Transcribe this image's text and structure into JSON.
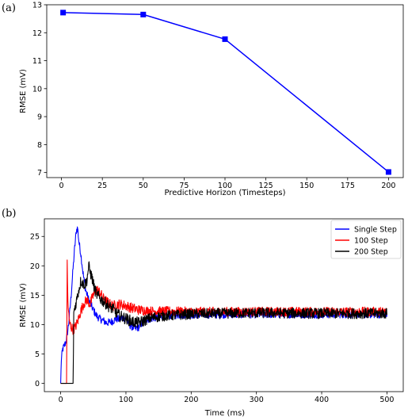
{
  "chart_data": [
    {
      "type": "line",
      "panel_label": "(a)",
      "xlabel": "Predictive Horizon (Timesteps)",
      "ylabel": "RMSE (mV)",
      "xlim": [
        -9,
        209
      ],
      "ylim": [
        6.82,
        13.0
      ],
      "xticks": [
        0,
        25,
        50,
        75,
        100,
        125,
        150,
        175,
        200
      ],
      "yticks": [
        7,
        8,
        9,
        10,
        11,
        12,
        13
      ],
      "grid": false,
      "series": [
        {
          "color": "#0000ff",
          "marker": "square",
          "x": [
            1,
            50,
            100,
            200
          ],
          "y": [
            12.72,
            12.65,
            11.77,
            7.02
          ]
        }
      ]
    },
    {
      "type": "line",
      "panel_label": "(b)",
      "xlabel": "Time (ms)",
      "ylabel": "RMSE (mV)",
      "xlim": [
        -25,
        525
      ],
      "ylim": [
        -1.4,
        28.0
      ],
      "xticks": [
        0,
        100,
        200,
        300,
        400,
        500
      ],
      "yticks": [
        0,
        5,
        10,
        15,
        20,
        25
      ],
      "grid": false,
      "legend_position": "top-right",
      "series": [
        {
          "name": "Single Step",
          "color": "#0000ff",
          "points": [
            [
              0,
              0
            ],
            [
              1,
              4
            ],
            [
              3,
              5.8
            ],
            [
              6,
              6.5
            ],
            [
              9,
              7.5
            ],
            [
              12,
              10
            ],
            [
              15,
              13.5
            ],
            [
              18,
              18
            ],
            [
              21,
              22.5
            ],
            [
              24,
              26
            ],
            [
              26,
              26.5
            ],
            [
              28,
              24
            ],
            [
              31,
              22
            ],
            [
              34,
              19
            ],
            [
              38,
              16
            ],
            [
              42,
              14.5
            ],
            [
              46,
              13.5
            ],
            [
              50,
              12.5
            ],
            [
              55,
              11.5
            ],
            [
              60,
              11
            ],
            [
              65,
              10.7
            ],
            [
              70,
              10.3
            ],
            [
              75,
              10.4
            ],
            [
              80,
              10.6
            ],
            [
              85,
              11
            ],
            [
              90,
              10.9
            ],
            [
              95,
              11.2
            ],
            [
              100,
              11.1
            ],
            [
              105,
              10
            ],
            [
              110,
              9.6
            ],
            [
              115,
              9.3
            ],
            [
              120,
              9.6
            ],
            [
              125,
              10.3
            ],
            [
              130,
              10.8
            ],
            [
              140,
              11
            ],
            [
              150,
              11.3
            ],
            [
              160,
              11.5
            ],
            [
              180,
              11.6
            ],
            [
              200,
              11.6
            ],
            [
              250,
              11.7
            ],
            [
              300,
              11.7
            ],
            [
              400,
              11.7
            ],
            [
              500,
              11.7
            ]
          ],
          "noise": 0.6
        },
        {
          "name": "100 Step",
          "color": "#ff0000",
          "points": [
            [
              0,
              0
            ],
            [
              9,
              0
            ],
            [
              10,
              20.5
            ],
            [
              11,
              14
            ],
            [
              13,
              10.5
            ],
            [
              16,
              9.6
            ],
            [
              19,
              9.2
            ],
            [
              22,
              9.5
            ],
            [
              26,
              10.5
            ],
            [
              30,
              12
            ],
            [
              35,
              13.5
            ],
            [
              40,
              14.2
            ],
            [
              45,
              13.5
            ],
            [
              50,
              15
            ],
            [
              55,
              16
            ],
            [
              60,
              15.5
            ],
            [
              65,
              14.5
            ],
            [
              70,
              14
            ],
            [
              75,
              13.5
            ],
            [
              80,
              13.2
            ],
            [
              90,
              13.5
            ],
            [
              100,
              13.2
            ],
            [
              110,
              12.8
            ],
            [
              120,
              12.5
            ],
            [
              140,
              12.3
            ],
            [
              160,
              12.3
            ],
            [
              200,
              12.2
            ],
            [
              300,
              12.2
            ],
            [
              400,
              12.2
            ],
            [
              500,
              12.2
            ]
          ],
          "noise": 0.8
        },
        {
          "name": "200 Step",
          "color": "#000000",
          "points": [
            [
              0,
              0
            ],
            [
              19,
              0
            ],
            [
              20,
              12
            ],
            [
              22,
              13
            ],
            [
              25,
              14.5
            ],
            [
              28,
              16
            ],
            [
              31,
              17.5
            ],
            [
              34,
              17
            ],
            [
              37,
              16.8
            ],
            [
              40,
              17.5
            ],
            [
              43,
              20
            ],
            [
              45,
              19
            ],
            [
              48,
              18
            ],
            [
              52,
              16
            ],
            [
              56,
              15
            ],
            [
              60,
              14.5
            ],
            [
              65,
              14
            ],
            [
              70,
              13.5
            ],
            [
              75,
              13
            ],
            [
              80,
              12.7
            ],
            [
              85,
              12
            ],
            [
              90,
              11.5
            ],
            [
              100,
              11
            ],
            [
              110,
              10.5
            ],
            [
              120,
              10.3
            ],
            [
              130,
              10.8
            ],
            [
              140,
              11.2
            ],
            [
              160,
              11.5
            ],
            [
              200,
              11.8
            ],
            [
              300,
              12
            ],
            [
              400,
              11.9
            ],
            [
              500,
              11.9
            ]
          ],
          "noise": 0.9
        }
      ]
    }
  ]
}
